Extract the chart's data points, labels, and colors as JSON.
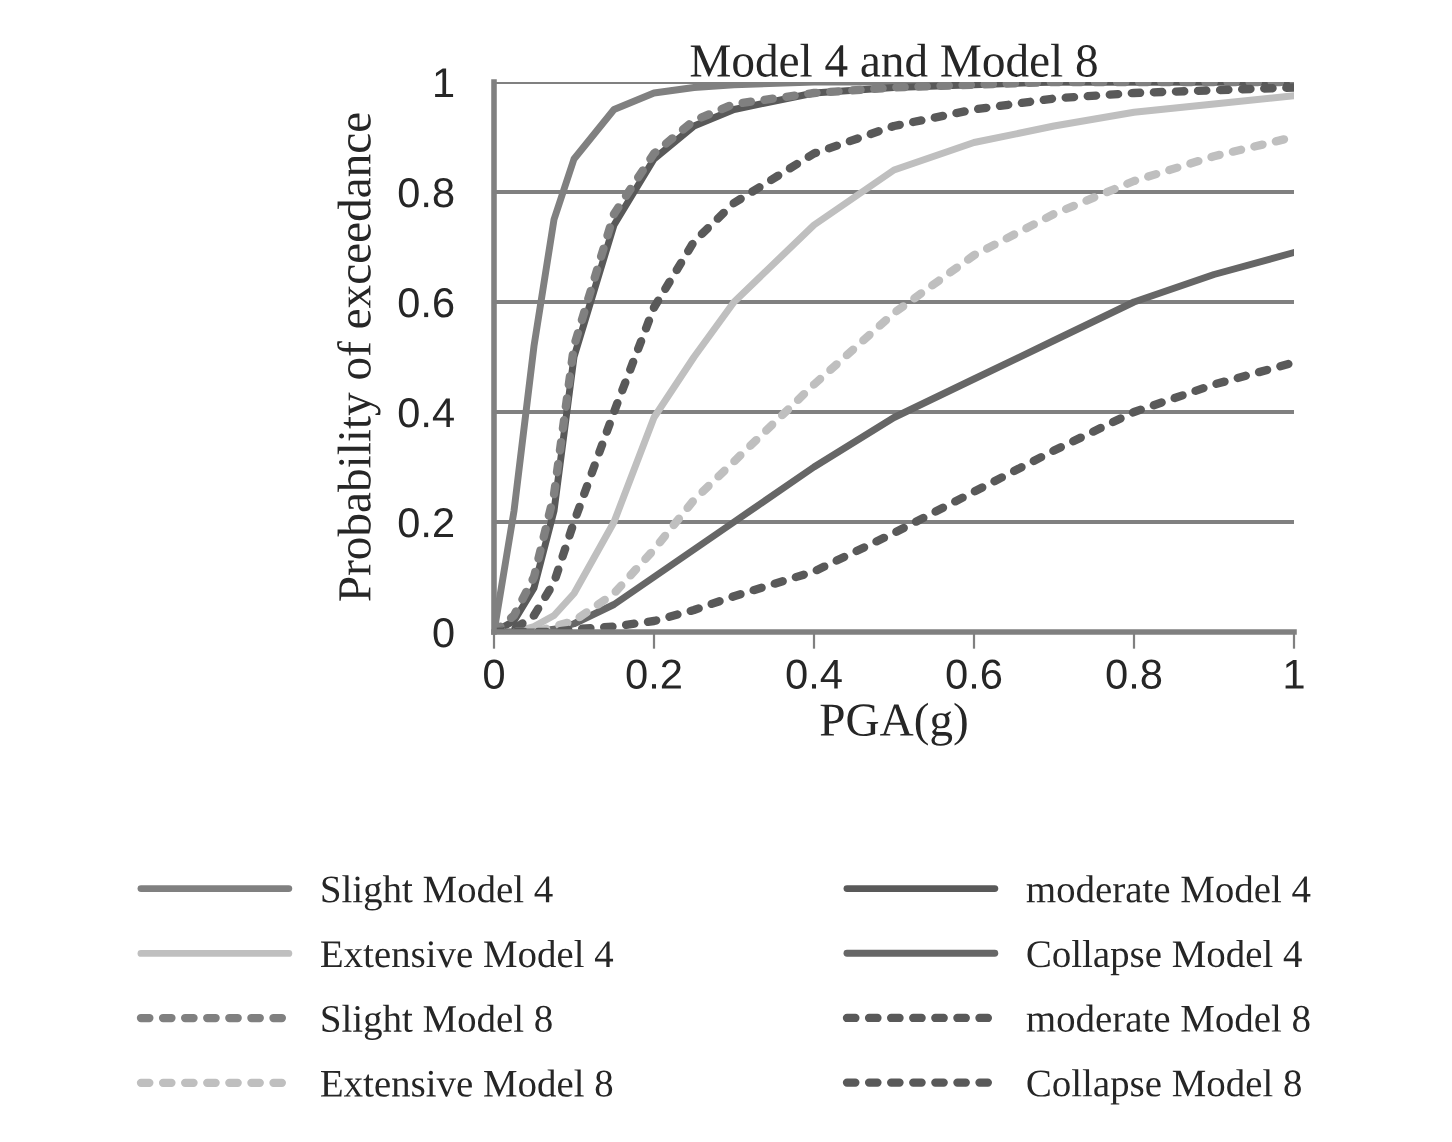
{
  "chart_data": {
    "type": "line",
    "title": "Model 4 and Model 8",
    "xlabel": "PGA(g)",
    "ylabel": "Probability of exceedance",
    "x": [
      0,
      0.025,
      0.05,
      0.075,
      0.1,
      0.15,
      0.2,
      0.25,
      0.3,
      0.4,
      0.5,
      0.6,
      0.7,
      0.8,
      0.9,
      1
    ],
    "series": [
      {
        "name": "Slight Model 4",
        "color": "#808080",
        "line_style": "solid",
        "values": [
          0,
          0.22,
          0.52,
          0.75,
          0.86,
          0.95,
          0.98,
          0.99,
          0.995,
          1,
          1,
          1,
          1,
          1,
          1,
          1
        ]
      },
      {
        "name": "moderate Model 4",
        "color": "#595959",
        "line_style": "solid",
        "values": [
          0,
          0.02,
          0.08,
          0.22,
          0.5,
          0.74,
          0.86,
          0.92,
          0.95,
          0.98,
          0.99,
          0.995,
          1,
          1,
          1,
          1
        ]
      },
      {
        "name": "Extensive Model 4",
        "color": "#bfbfbf",
        "line_style": "solid",
        "values": [
          0,
          0,
          0.01,
          0.03,
          0.07,
          0.2,
          0.39,
          0.5,
          0.6,
          0.74,
          0.84,
          0.89,
          0.92,
          0.945,
          0.96,
          0.975
        ]
      },
      {
        "name": "Collapse Model 4",
        "color": "#666666",
        "line_style": "solid",
        "values": [
          0,
          0,
          0,
          0.005,
          0.015,
          0.05,
          0.1,
          0.15,
          0.2,
          0.3,
          0.39,
          0.46,
          0.53,
          0.6,
          0.65,
          0.69
        ]
      },
      {
        "name": "Slight Model 8",
        "color": "#808080",
        "line_style": "dotted",
        "values": [
          0,
          0.03,
          0.1,
          0.25,
          0.52,
          0.76,
          0.87,
          0.93,
          0.96,
          0.98,
          0.99,
          0.995,
          1,
          1,
          1,
          1
        ]
      },
      {
        "name": "moderate Model 8",
        "color": "#595959",
        "line_style": "dotted",
        "values": [
          0,
          0.005,
          0.03,
          0.09,
          0.2,
          0.4,
          0.59,
          0.71,
          0.78,
          0.87,
          0.92,
          0.95,
          0.97,
          0.98,
          0.985,
          0.99
        ]
      },
      {
        "name": "Extensive Model 8",
        "color": "#bfbfbf",
        "line_style": "dotted",
        "values": [
          0,
          0,
          0,
          0.01,
          0.02,
          0.07,
          0.15,
          0.24,
          0.31,
          0.45,
          0.58,
          0.685,
          0.76,
          0.82,
          0.865,
          0.9
        ]
      },
      {
        "name": "Collapse Model 8",
        "color": "#595959",
        "line_style": "dotted",
        "values": [
          0,
          0,
          0,
          0,
          0.005,
          0.01,
          0.02,
          0.04,
          0.065,
          0.11,
          0.18,
          0.255,
          0.33,
          0.4,
          0.45,
          0.49
        ]
      }
    ],
    "xlim": [
      0,
      1
    ],
    "xticks": [
      0,
      0.2,
      0.4,
      0.6,
      0.8,
      1
    ],
    "ylim": [
      0,
      1
    ],
    "yticks": [
      0,
      0.2,
      0.4,
      0.6,
      0.8,
      1
    ],
    "grid": "y",
    "legend": "bottom",
    "marker": "none"
  }
}
